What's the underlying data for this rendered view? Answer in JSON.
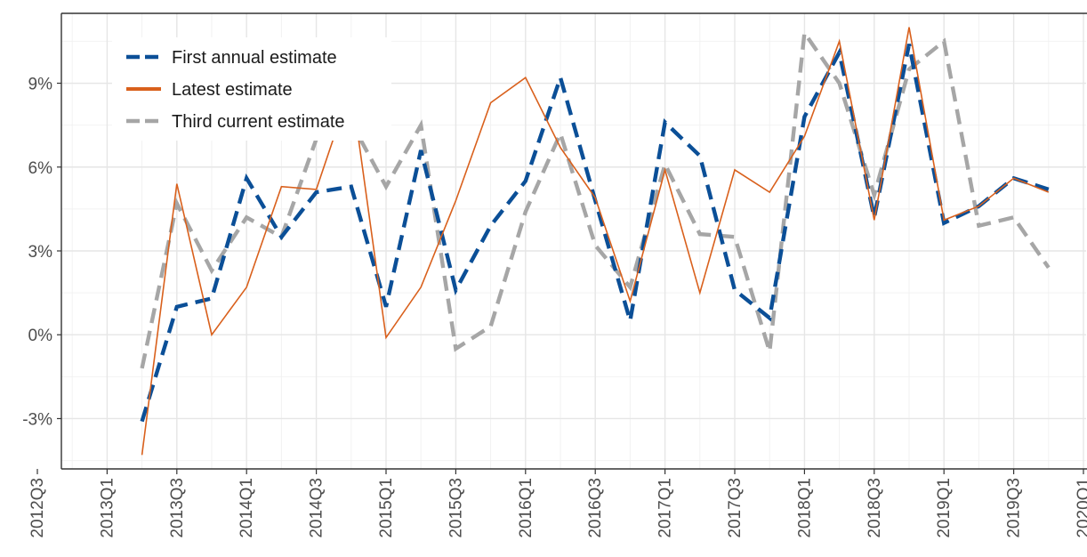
{
  "chart_data": {
    "type": "line",
    "grid": true,
    "legend_position": "top-left",
    "ylim": [
      -4.8,
      11.5
    ],
    "y_ticks": [
      {
        "value": -3,
        "label": "-3%"
      },
      {
        "value": 0,
        "label": "0%"
      },
      {
        "value": 3,
        "label": "3%"
      },
      {
        "value": 6,
        "label": "6%"
      },
      {
        "value": 9,
        "label": "9%"
      }
    ],
    "x_tick_labels": [
      "2012Q3",
      "2013Q1",
      "2013Q3",
      "2014Q1",
      "2014Q3",
      "2015Q1",
      "2015Q3",
      "2016Q1",
      "2016Q3",
      "2017Q1",
      "2017Q3",
      "2018Q1",
      "2018Q3",
      "2019Q1",
      "2019Q3",
      "2020Q1"
    ],
    "x": [
      "2013Q2",
      "2013Q3",
      "2013Q4",
      "2014Q1",
      "2014Q2",
      "2014Q3",
      "2014Q4",
      "2015Q1",
      "2015Q2",
      "2015Q3",
      "2015Q4",
      "2016Q1",
      "2016Q2",
      "2016Q3",
      "2016Q4",
      "2017Q1",
      "2017Q2",
      "2017Q3",
      "2017Q4",
      "2018Q1",
      "2018Q2",
      "2018Q3",
      "2018Q4",
      "2019Q1",
      "2019Q2",
      "2019Q3",
      "2019Q4"
    ],
    "series": [
      {
        "name": "First annual estimate",
        "color": "#0b4f97",
        "style": "dashed-thick",
        "values": [
          -3.1,
          1.0,
          1.3,
          5.6,
          3.5,
          5.1,
          5.3,
          1.0,
          6.6,
          1.6,
          3.9,
          5.5,
          9.2,
          4.8,
          0.5,
          7.6,
          6.4,
          1.6,
          0.6,
          7.8,
          10.1,
          4.2,
          10.4,
          4.0,
          4.6,
          5.6,
          5.2
        ]
      },
      {
        "name": "Latest estimate",
        "color": "#d9601c",
        "style": "solid-thin",
        "values": [
          -4.3,
          5.4,
          0.0,
          1.7,
          5.3,
          5.2,
          8.9,
          -0.1,
          1.7,
          4.8,
          8.3,
          9.2,
          6.7,
          4.9,
          1.2,
          5.9,
          1.5,
          5.9,
          5.1,
          7.1,
          10.5,
          4.1,
          11.0,
          4.1,
          4.6,
          5.6,
          5.1
        ]
      },
      {
        "name": "Third current estimate",
        "color": "#a6a6a6",
        "style": "dashed-thick",
        "values": [
          -1.2,
          4.7,
          2.3,
          4.2,
          3.5,
          7.0,
          7.6,
          5.3,
          7.5,
          -0.5,
          0.3,
          4.4,
          7.2,
          3.2,
          1.7,
          6.1,
          3.6,
          3.5,
          -0.6,
          10.8,
          9.0,
          5.0,
          9.5,
          10.5,
          3.9,
          4.2,
          2.4
        ]
      }
    ]
  }
}
